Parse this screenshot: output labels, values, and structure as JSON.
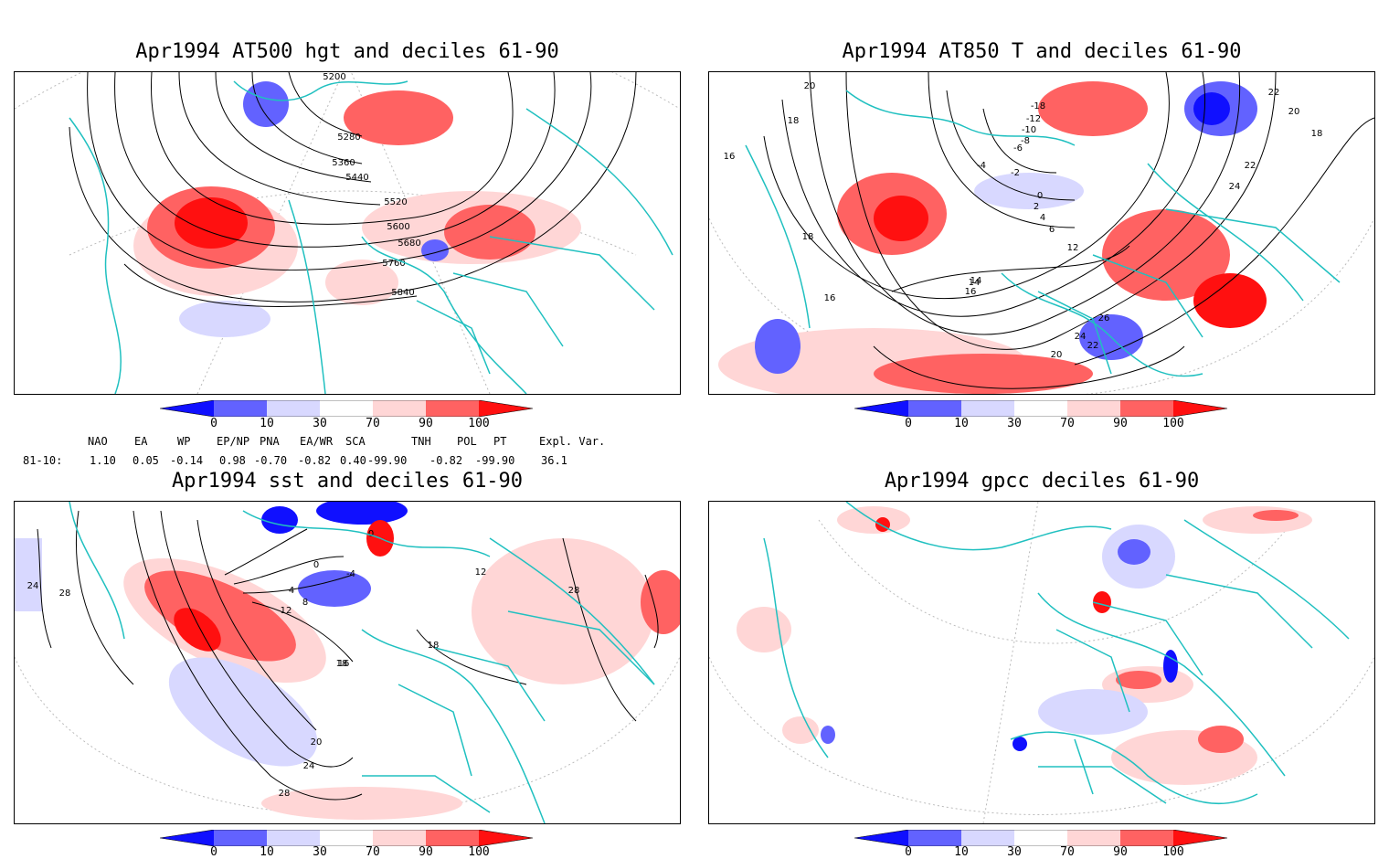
{
  "panels": {
    "p1": {
      "title": "Apr1994 AT500 hgt and deciles 61-90",
      "contour_labels": [
        "5200",
        "5280",
        "5360",
        "5440",
        "5520",
        "5600",
        "5680",
        "5760",
        "5840"
      ]
    },
    "p2": {
      "title": "Apr1994 AT850 T and deciles 61-90",
      "contour_labels": [
        "20",
        "18",
        "16",
        "18",
        "16",
        "14",
        "12",
        "-4",
        "-2",
        "0",
        "2",
        "4",
        "6",
        "22",
        "24",
        "26",
        "22",
        "20",
        "24",
        "22",
        "20",
        "18",
        "-18",
        "-12",
        "-10",
        "-8",
        "-6",
        "16",
        "14"
      ]
    },
    "p3": {
      "title": "Apr1994 sst and deciles 61-90",
      "contour_labels": [
        "24",
        "28",
        "0",
        "0",
        "4",
        "8",
        "12",
        "16",
        "18",
        "20",
        "24",
        "28",
        "28",
        "-4",
        "18",
        "12"
      ]
    },
    "p4": {
      "title": "Apr1994 gpcc deciles 61-90"
    }
  },
  "colorbar": {
    "ticks": [
      "0",
      "10",
      "30",
      "70",
      "90",
      "100"
    ],
    "colors": [
      "#1010ff",
      "#6262ff",
      "#d8d8ff",
      "#ffffff",
      "#ffd6d6",
      "#ff6262",
      "#ff1010"
    ]
  },
  "indices": {
    "headers": [
      "NAO",
      "EA",
      "WP",
      "EP/NP",
      "PNA",
      "EA/WR",
      "SCA",
      "TNH",
      "POL",
      "PT",
      "Expl. Var."
    ],
    "row_label": "81-10:",
    "values": [
      "1.10",
      "0.05",
      "-0.14",
      "0.98",
      "-0.70",
      "-0.82",
      "0.40",
      "-99.90",
      "-0.82",
      "-99.90",
      "36.1"
    ]
  }
}
